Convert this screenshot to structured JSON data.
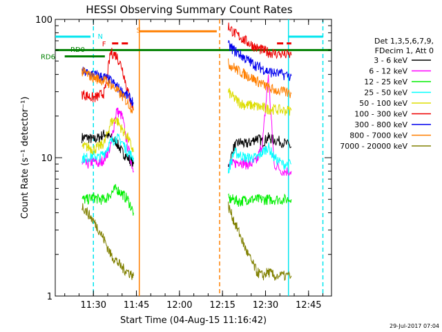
{
  "chart_data": {
    "type": "line",
    "title": "HESSI Observing Summary Count Rates",
    "xlabel": "Start Time (04-Aug-15 11:16:42)",
    "ylabel": "Count Rate (s⁻¹ detector⁻¹)",
    "x_ticks": [
      "11:30",
      "11:45",
      "12:00",
      "12:15",
      "12:30",
      "12:45"
    ],
    "x_range": [
      "11:16:42",
      "12:53:00"
    ],
    "y_scale": "log",
    "y_range": [
      1,
      100
    ],
    "y_ticks": [
      "1",
      "10",
      "100"
    ],
    "grid": false,
    "legend_header": [
      "Det 1,3,5,6,7,9,",
      "FDecim 1, Att 0"
    ],
    "legend_position": "right",
    "timestamp": "29-Jul-2017 07:04",
    "markers": [
      {
        "label": "N",
        "color": "#00e5ee"
      },
      {
        "label": "F",
        "color": "#ee0000"
      },
      {
        "label": "S",
        "color": "#ff7f00"
      },
      {
        "label": "RD0",
        "color": "#008000"
      },
      {
        "label": "RD6",
        "color": "#008000"
      }
    ],
    "time_lines": [
      {
        "t": "11:30:00",
        "color": "#00e5ee",
        "style": "dashed"
      },
      {
        "t": "11:46:00",
        "color": "#ff7f00",
        "style": "solid"
      },
      {
        "t": "12:14:00",
        "color": "#ff7f00",
        "style": "dashed"
      },
      {
        "t": "12:38:00",
        "color": "#00e5ee",
        "style": "solid"
      },
      {
        "t": "12:50:00",
        "color": "#00e5ee",
        "style": "dashed"
      }
    ],
    "bars": [
      {
        "label": "N",
        "start": "11:16:42",
        "end": "11:29:00",
        "value": 75,
        "color": "#00e5ee"
      },
      {
        "label": "N",
        "start": "12:38:00",
        "end": "12:50:00",
        "value": 75,
        "color": "#00e5ee"
      },
      {
        "label": "S",
        "start": "11:46:00",
        "end": "12:13:00",
        "value": 82,
        "color": "#ff7f00"
      },
      {
        "label": "F",
        "start": "11:36:30",
        "end": "11:43:00",
        "value": 67,
        "color": "#ee0000"
      },
      {
        "label": "F",
        "start": "12:34:00",
        "end": "12:39:00",
        "value": 67,
        "color": "#ee0000"
      },
      {
        "label": "RD0",
        "start": "11:16:42",
        "end": "12:53:00",
        "value": 60,
        "color": "#008000"
      },
      {
        "label": "RD6",
        "start": "11:20:00",
        "end": "11:34:00",
        "value": 54,
        "color": "#008000"
      }
    ],
    "series": [
      {
        "name": "3 - 6 keV",
        "color": "#000000",
        "seg1": [
          14,
          14,
          13.5,
          14,
          15,
          14,
          13,
          11,
          10,
          9
        ],
        "seg2": [
          8.5,
          12,
          13,
          12.5,
          13,
          14,
          13,
          14,
          13.5,
          13,
          12
        ]
      },
      {
        "name": "6 - 12 keV",
        "color": "#ff00ff",
        "seg1": [
          9,
          9,
          9.5,
          9,
          10,
          12,
          22,
          20,
          12,
          8
        ],
        "seg2": [
          9,
          9,
          9.5,
          9,
          9,
          9.5,
          13,
          40,
          9,
          8,
          8
        ]
      },
      {
        "name": "12 - 25 keV",
        "color": "#00ee00",
        "seg1": [
          5,
          5,
          5.2,
          5,
          5,
          5.5,
          6,
          5.5,
          5,
          4
        ],
        "seg2": [
          5,
          5,
          4.8,
          5,
          5,
          5,
          5,
          5,
          5,
          5,
          5
        ]
      },
      {
        "name": "25 - 50 keV",
        "color": "#00ffff",
        "seg1": [
          10,
          10,
          10.5,
          10,
          11,
          13,
          14,
          13,
          11,
          10
        ],
        "seg2": [
          8,
          11,
          10.5,
          10,
          10,
          10,
          11,
          12,
          10,
          9,
          9
        ]
      },
      {
        "name": "50 - 100 keV",
        "color": "#dddd00",
        "seg1": [
          12,
          12,
          11.5,
          12,
          13,
          18,
          19,
          16,
          14,
          11
        ],
        "seg2": [
          30,
          27,
          25,
          24,
          24,
          23.5,
          23,
          22.5,
          22.5,
          22,
          22
        ]
      },
      {
        "name": "100 - 300 keV",
        "color": "#ee0000",
        "seg1": [
          29,
          28,
          27,
          28,
          30,
          58,
          55,
          45,
          30,
          22
        ],
        "seg2": [
          90,
          80,
          75,
          70,
          66,
          62,
          60,
          58,
          57,
          56,
          55
        ]
      },
      {
        "name": "300 - 800 keV",
        "color": "#0000ee",
        "seg1": [
          42,
          41,
          40,
          39,
          38,
          36,
          33,
          30,
          28,
          25
        ],
        "seg2": [
          65,
          60,
          56,
          52,
          49,
          46,
          44,
          42,
          41,
          40,
          39
        ]
      },
      {
        "name": "800 - 7000 keV",
        "color": "#ff7f00",
        "seg1": [
          42,
          40,
          38,
          37,
          36,
          34,
          31,
          28,
          25,
          22
        ],
        "seg2": [
          48,
          45,
          42,
          40,
          38,
          36,
          34,
          32,
          31,
          30,
          29
        ]
      },
      {
        "name": "7000 - 20000 keV",
        "color": "#808000",
        "seg1": [
          4.5,
          4,
          3.5,
          3,
          2.5,
          2,
          1.8,
          1.6,
          1.5,
          1.4
        ],
        "seg2": [
          4.5,
          3.5,
          2.8,
          2.2,
          1.8,
          1.5,
          1.4,
          1.5,
          1.4,
          1.4,
          1.4
        ]
      }
    ],
    "segment_times": {
      "seg1": [
        "11:26:00",
        "11:28:00",
        "11:30:00",
        "11:32:00",
        "11:34:00",
        "11:36:00",
        "11:38:00",
        "11:40:00",
        "11:42:00",
        "11:44:00"
      ],
      "seg2": [
        "12:17:00",
        "12:19:00",
        "12:21:00",
        "12:23:00",
        "12:25:00",
        "12:27:00",
        "12:29:00",
        "12:31:00",
        "12:33:00",
        "12:36:00",
        "12:39:00"
      ]
    }
  }
}
